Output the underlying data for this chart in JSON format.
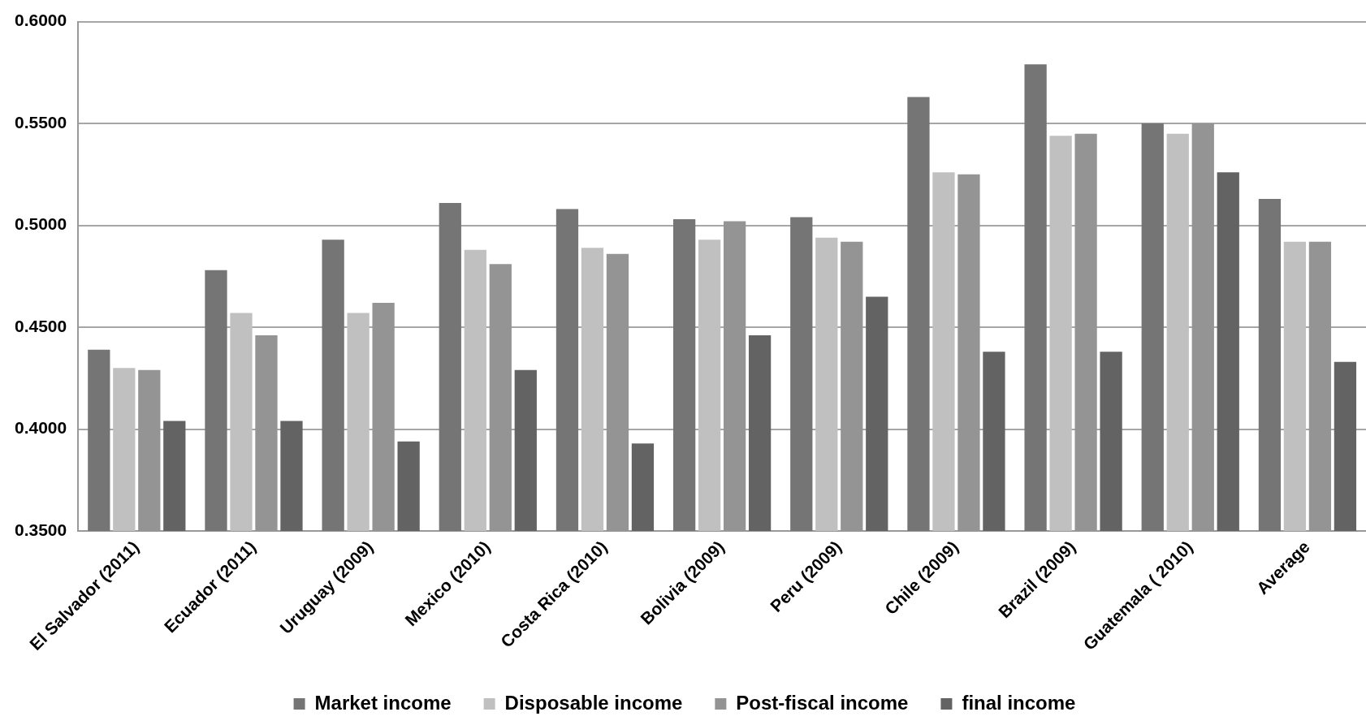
{
  "chart_data": {
    "type": "bar",
    "categories": [
      "El Salvador (2011)",
      "Ecuador (2011)",
      "Uruguay (2009)",
      "Mexico (2010)",
      "Costa Rica (2010)",
      "Bolivia (2009)",
      "Peru (2009)",
      "Chile (2009)",
      "Brazil (2009)",
      "Guatemala ( 2010)",
      "Average"
    ],
    "series": [
      {
        "name": "Market income",
        "color": "#757575",
        "values": [
          0.439,
          0.478,
          0.493,
          0.511,
          0.508,
          0.503,
          0.504,
          0.563,
          0.579,
          0.55,
          0.513
        ]
      },
      {
        "name": "Disposable income",
        "color": "#c0c0c0",
        "values": [
          0.43,
          0.457,
          0.457,
          0.488,
          0.489,
          0.493,
          0.494,
          0.526,
          0.544,
          0.545,
          0.492
        ]
      },
      {
        "name": "Post-fiscal income",
        "color": "#949494",
        "values": [
          0.429,
          0.446,
          0.462,
          0.481,
          0.486,
          0.502,
          0.492,
          0.525,
          0.545,
          0.55,
          0.492
        ]
      },
      {
        "name": "final income",
        "color": "#636363",
        "values": [
          0.404,
          0.404,
          0.394,
          0.429,
          0.393,
          0.446,
          0.465,
          0.438,
          0.438,
          0.526,
          0.433
        ]
      }
    ],
    "ylim": [
      0.35,
      0.6
    ],
    "yticks": [
      {
        "value": 0.35,
        "label": "0.3500"
      },
      {
        "value": 0.4,
        "label": "0.4000"
      },
      {
        "value": 0.45,
        "label": "0.4500"
      },
      {
        "value": 0.5,
        "label": "0.5000"
      },
      {
        "value": 0.55,
        "label": "0.5500"
      },
      {
        "value": 0.6,
        "label": "0.6000"
      }
    ],
    "grid": "y",
    "legend": "bottom"
  }
}
